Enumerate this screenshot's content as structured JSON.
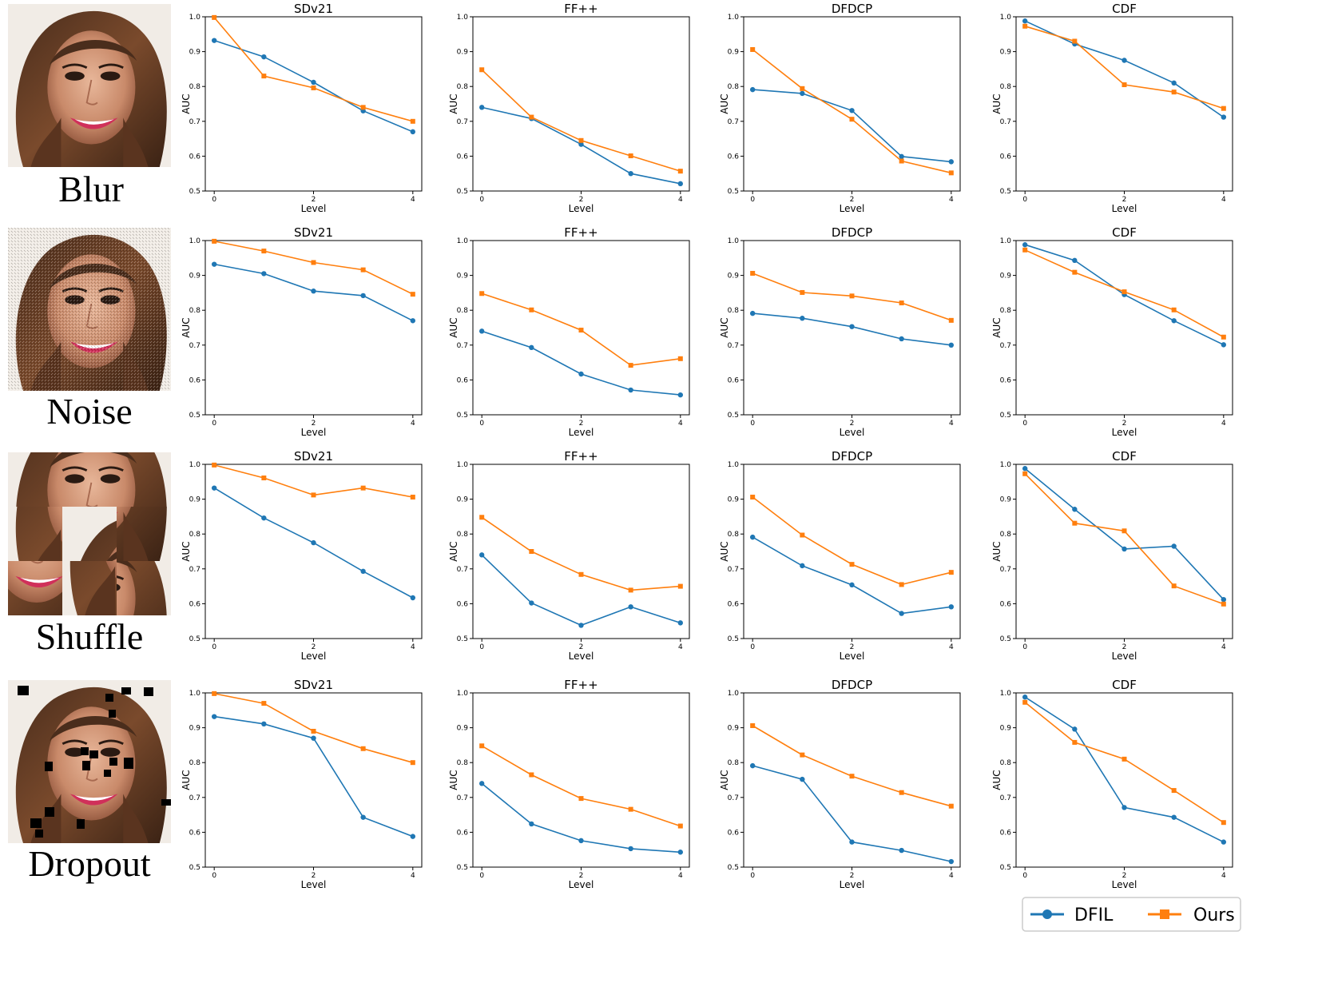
{
  "colors": {
    "dfil": "#1f77b4",
    "ours": "#ff7f0e",
    "axis": "#000000"
  },
  "legend": {
    "dfil": "DFIL",
    "ours": "Ours",
    "placement": "bottom-right"
  },
  "rows": [
    {
      "label": "Blur",
      "image": "portrait, sharp"
    },
    {
      "label": "Noise",
      "image": "portrait, noisy"
    },
    {
      "label": "Shuffle",
      "image": "portrait, tiles shuffled"
    },
    {
      "label": "Dropout",
      "image": "portrait, black squares dropped"
    }
  ],
  "chart_data": [
    {
      "row": "Blur",
      "type": "line",
      "title": "SDv21",
      "xlabel": "Level",
      "ylabel": "AUC",
      "x": [
        0,
        1,
        2,
        3,
        4
      ],
      "xticks": [
        0,
        2,
        4
      ],
      "ylim": [
        0.5,
        1.0
      ],
      "yticks": [
        0.5,
        0.6,
        0.7,
        0.8,
        0.9,
        1.0
      ],
      "series": [
        {
          "name": "DFIL",
          "values": [
            0.932,
            0.885,
            0.812,
            0.73,
            0.67
          ]
        },
        {
          "name": "Ours",
          "values": [
            0.998,
            0.83,
            0.796,
            0.74,
            0.7
          ]
        }
      ]
    },
    {
      "row": "Blur",
      "type": "line",
      "title": "FF++",
      "xlabel": "Level",
      "ylabel": "AUC",
      "x": [
        0,
        1,
        2,
        3,
        4
      ],
      "xticks": [
        0,
        2,
        4
      ],
      "ylim": [
        0.5,
        1.0
      ],
      "yticks": [
        0.5,
        0.6,
        0.7,
        0.8,
        0.9,
        1.0
      ],
      "series": [
        {
          "name": "DFIL",
          "values": [
            0.74,
            0.708,
            0.634,
            0.55,
            0.521
          ]
        },
        {
          "name": "Ours",
          "values": [
            0.848,
            0.712,
            0.645,
            0.601,
            0.557
          ]
        }
      ]
    },
    {
      "row": "Blur",
      "type": "line",
      "title": "DFDCP",
      "xlabel": "Level",
      "ylabel": "AUC",
      "x": [
        0,
        1,
        2,
        3,
        4
      ],
      "xticks": [
        0,
        2,
        4
      ],
      "ylim": [
        0.5,
        1.0
      ],
      "yticks": [
        0.5,
        0.6,
        0.7,
        0.8,
        0.9,
        1.0
      ],
      "series": [
        {
          "name": "DFIL",
          "values": [
            0.791,
            0.78,
            0.731,
            0.599,
            0.584
          ]
        },
        {
          "name": "Ours",
          "values": [
            0.906,
            0.794,
            0.706,
            0.586,
            0.552
          ]
        }
      ]
    },
    {
      "row": "Blur",
      "type": "line",
      "title": "CDF",
      "xlabel": "Level",
      "ylabel": "AUC",
      "x": [
        0,
        1,
        2,
        3,
        4
      ],
      "xticks": [
        0,
        2,
        4
      ],
      "ylim": [
        0.5,
        1.0
      ],
      "yticks": [
        0.5,
        0.6,
        0.7,
        0.8,
        0.9,
        1.0
      ],
      "series": [
        {
          "name": "DFIL",
          "values": [
            0.988,
            0.922,
            0.875,
            0.81,
            0.712
          ]
        },
        {
          "name": "Ours",
          "values": [
            0.973,
            0.93,
            0.805,
            0.784,
            0.737
          ]
        }
      ]
    },
    {
      "row": "Noise",
      "type": "line",
      "title": "SDv21",
      "xlabel": "Level",
      "ylabel": "AUC",
      "x": [
        0,
        1,
        2,
        3,
        4
      ],
      "xticks": [
        0,
        2,
        4
      ],
      "ylim": [
        0.5,
        1.0
      ],
      "yticks": [
        0.5,
        0.6,
        0.7,
        0.8,
        0.9,
        1.0
      ],
      "series": [
        {
          "name": "DFIL",
          "values": [
            0.932,
            0.905,
            0.855,
            0.842,
            0.77
          ]
        },
        {
          "name": "Ours",
          "values": [
            0.998,
            0.97,
            0.937,
            0.916,
            0.846
          ]
        }
      ]
    },
    {
      "row": "Noise",
      "type": "line",
      "title": "FF++",
      "xlabel": "Level",
      "ylabel": "AUC",
      "x": [
        0,
        1,
        2,
        3,
        4
      ],
      "xticks": [
        0,
        2,
        4
      ],
      "ylim": [
        0.5,
        1.0
      ],
      "yticks": [
        0.5,
        0.6,
        0.7,
        0.8,
        0.9,
        1.0
      ],
      "series": [
        {
          "name": "DFIL",
          "values": [
            0.74,
            0.693,
            0.617,
            0.571,
            0.557
          ]
        },
        {
          "name": "Ours",
          "values": [
            0.848,
            0.801,
            0.743,
            0.642,
            0.661
          ]
        }
      ]
    },
    {
      "row": "Noise",
      "type": "line",
      "title": "DFDCP",
      "xlabel": "Level",
      "ylabel": "AUC",
      "x": [
        0,
        1,
        2,
        3,
        4
      ],
      "xticks": [
        0,
        2,
        4
      ],
      "ylim": [
        0.5,
        1.0
      ],
      "yticks": [
        0.5,
        0.6,
        0.7,
        0.8,
        0.9,
        1.0
      ],
      "series": [
        {
          "name": "DFIL",
          "values": [
            0.791,
            0.777,
            0.753,
            0.718,
            0.7
          ]
        },
        {
          "name": "Ours",
          "values": [
            0.906,
            0.851,
            0.841,
            0.821,
            0.771
          ]
        }
      ]
    },
    {
      "row": "Noise",
      "type": "line",
      "title": "CDF",
      "xlabel": "Level",
      "ylabel": "AUC",
      "x": [
        0,
        1,
        2,
        3,
        4
      ],
      "xticks": [
        0,
        2,
        4
      ],
      "ylim": [
        0.5,
        1.0
      ],
      "yticks": [
        0.5,
        0.6,
        0.7,
        0.8,
        0.9,
        1.0
      ],
      "series": [
        {
          "name": "DFIL",
          "values": [
            0.988,
            0.943,
            0.845,
            0.77,
            0.701
          ]
        },
        {
          "name": "Ours",
          "values": [
            0.973,
            0.909,
            0.853,
            0.801,
            0.723
          ]
        }
      ]
    },
    {
      "row": "Shuffle",
      "type": "line",
      "title": "SDv21",
      "xlabel": "Level",
      "ylabel": "AUC",
      "x": [
        0,
        1,
        2,
        3,
        4
      ],
      "xticks": [
        0,
        2,
        4
      ],
      "ylim": [
        0.5,
        1.0
      ],
      "yticks": [
        0.5,
        0.6,
        0.7,
        0.8,
        0.9,
        1.0
      ],
      "series": [
        {
          "name": "DFIL",
          "values": [
            0.932,
            0.846,
            0.775,
            0.693,
            0.617
          ]
        },
        {
          "name": "Ours",
          "values": [
            0.998,
            0.961,
            0.912,
            0.932,
            0.906
          ]
        }
      ]
    },
    {
      "row": "Shuffle",
      "type": "line",
      "title": "FF++",
      "xlabel": "Level",
      "ylabel": "AUC",
      "x": [
        0,
        1,
        2,
        3,
        4
      ],
      "xticks": [
        0,
        2,
        4
      ],
      "ylim": [
        0.5,
        1.0
      ],
      "yticks": [
        0.5,
        0.6,
        0.7,
        0.8,
        0.9,
        1.0
      ],
      "series": [
        {
          "name": "DFIL",
          "values": [
            0.74,
            0.602,
            0.538,
            0.591,
            0.545
          ]
        },
        {
          "name": "Ours",
          "values": [
            0.848,
            0.75,
            0.684,
            0.639,
            0.65
          ]
        }
      ]
    },
    {
      "row": "Shuffle",
      "type": "line",
      "title": "DFDCP",
      "xlabel": "Level",
      "ylabel": "AUC",
      "x": [
        0,
        1,
        2,
        3,
        4
      ],
      "xticks": [
        0,
        2,
        4
      ],
      "ylim": [
        0.5,
        1.0
      ],
      "yticks": [
        0.5,
        0.6,
        0.7,
        0.8,
        0.9,
        1.0
      ],
      "series": [
        {
          "name": "DFIL",
          "values": [
            0.791,
            0.709,
            0.654,
            0.572,
            0.591
          ]
        },
        {
          "name": "Ours",
          "values": [
            0.906,
            0.797,
            0.713,
            0.655,
            0.69
          ]
        }
      ]
    },
    {
      "row": "Shuffle",
      "type": "line",
      "title": "CDF",
      "xlabel": "Level",
      "ylabel": "AUC",
      "x": [
        0,
        1,
        2,
        3,
        4
      ],
      "xticks": [
        0,
        2,
        4
      ],
      "ylim": [
        0.5,
        1.0
      ],
      "yticks": [
        0.5,
        0.6,
        0.7,
        0.8,
        0.9,
        1.0
      ],
      "series": [
        {
          "name": "DFIL",
          "values": [
            0.988,
            0.871,
            0.757,
            0.765,
            0.612
          ]
        },
        {
          "name": "Ours",
          "values": [
            0.973,
            0.831,
            0.809,
            0.651,
            0.599
          ]
        }
      ]
    },
    {
      "row": "Dropout",
      "type": "line",
      "title": "SDv21",
      "xlabel": "Level",
      "ylabel": "AUC",
      "x": [
        0,
        1,
        2,
        3,
        4
      ],
      "xticks": [
        0,
        2,
        4
      ],
      "ylim": [
        0.5,
        1.0
      ],
      "yticks": [
        0.5,
        0.6,
        0.7,
        0.8,
        0.9,
        1.0
      ],
      "series": [
        {
          "name": "DFIL",
          "values": [
            0.932,
            0.911,
            0.87,
            0.643,
            0.588
          ]
        },
        {
          "name": "Ours",
          "values": [
            0.998,
            0.97,
            0.89,
            0.84,
            0.8
          ]
        }
      ]
    },
    {
      "row": "Dropout",
      "type": "line",
      "title": "FF++",
      "xlabel": "Level",
      "ylabel": "AUC",
      "x": [
        0,
        1,
        2,
        3,
        4
      ],
      "xticks": [
        0,
        2,
        4
      ],
      "ylim": [
        0.5,
        1.0
      ],
      "yticks": [
        0.5,
        0.6,
        0.7,
        0.8,
        0.9,
        1.0
      ],
      "series": [
        {
          "name": "DFIL",
          "values": [
            0.74,
            0.624,
            0.576,
            0.553,
            0.543
          ]
        },
        {
          "name": "Ours",
          "values": [
            0.848,
            0.765,
            0.697,
            0.666,
            0.618
          ]
        }
      ]
    },
    {
      "row": "Dropout",
      "type": "line",
      "title": "DFDCP",
      "xlabel": "Level",
      "ylabel": "AUC",
      "x": [
        0,
        1,
        2,
        3,
        4
      ],
      "xticks": [
        0,
        2,
        4
      ],
      "ylim": [
        0.5,
        1.0
      ],
      "yticks": [
        0.5,
        0.6,
        0.7,
        0.8,
        0.9,
        1.0
      ],
      "series": [
        {
          "name": "DFIL",
          "values": [
            0.791,
            0.752,
            0.572,
            0.548,
            0.516
          ]
        },
        {
          "name": "Ours",
          "values": [
            0.906,
            0.822,
            0.761,
            0.714,
            0.675
          ]
        }
      ]
    },
    {
      "row": "Dropout",
      "type": "line",
      "title": "CDF",
      "xlabel": "Level",
      "ylabel": "AUC",
      "x": [
        0,
        1,
        2,
        3,
        4
      ],
      "xticks": [
        0,
        2,
        4
      ],
      "ylim": [
        0.5,
        1.0
      ],
      "yticks": [
        0.5,
        0.6,
        0.7,
        0.8,
        0.9,
        1.0
      ],
      "series": [
        {
          "name": "DFIL",
          "values": [
            0.988,
            0.896,
            0.671,
            0.643,
            0.572
          ]
        },
        {
          "name": "Ours",
          "values": [
            0.973,
            0.858,
            0.81,
            0.72,
            0.628
          ]
        }
      ]
    }
  ]
}
